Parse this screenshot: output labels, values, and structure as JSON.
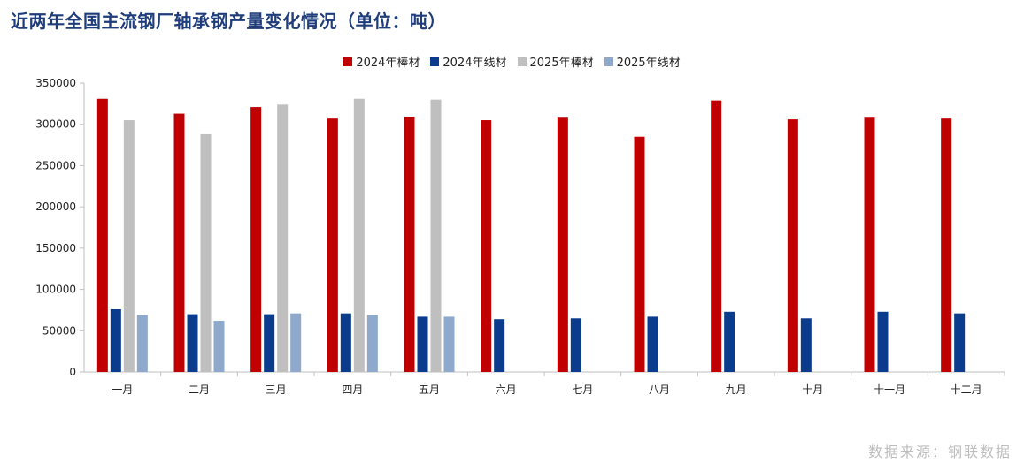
{
  "title": "近两年全国主流钢厂轴承钢产量变化情况（单位：吨）",
  "source": "数据来源：钢联数据",
  "chart_data": {
    "type": "bar",
    "title": "近两年全国主流钢厂轴承钢产量变化情况（单位：吨）",
    "categories": [
      "一月",
      "二月",
      "三月",
      "四月",
      "五月",
      "六月",
      "七月",
      "八月",
      "九月",
      "十月",
      "十一月",
      "十二月"
    ],
    "ylim": [
      0,
      350000
    ],
    "yticks": [
      0,
      50000,
      100000,
      150000,
      200000,
      250000,
      300000,
      350000
    ],
    "ytick_labels": [
      "0",
      "50000",
      "100000",
      "150000",
      "200000",
      "250000",
      "300000",
      "350000"
    ],
    "grid": false,
    "legend_position": "top-center",
    "series": [
      {
        "name": "2024年棒材",
        "color": "#c00000",
        "values": [
          331000,
          313000,
          321000,
          307000,
          309000,
          305000,
          308000,
          285000,
          329000,
          306000,
          308000,
          307000
        ]
      },
      {
        "name": "2024年线材",
        "color": "#0b3b8c",
        "values": [
          76000,
          70000,
          70000,
          71000,
          67000,
          64000,
          65000,
          67000,
          73000,
          65000,
          73000,
          71000
        ]
      },
      {
        "name": "2025年棒材",
        "color": "#bfbfbf",
        "values": [
          305000,
          288000,
          324000,
          331000,
          330000,
          null,
          null,
          null,
          null,
          null,
          null,
          null
        ]
      },
      {
        "name": "2025年线材",
        "color": "#8ea9cc",
        "values": [
          69000,
          62000,
          71000,
          69000,
          67000,
          null,
          null,
          null,
          null,
          null,
          null,
          null
        ]
      }
    ]
  }
}
